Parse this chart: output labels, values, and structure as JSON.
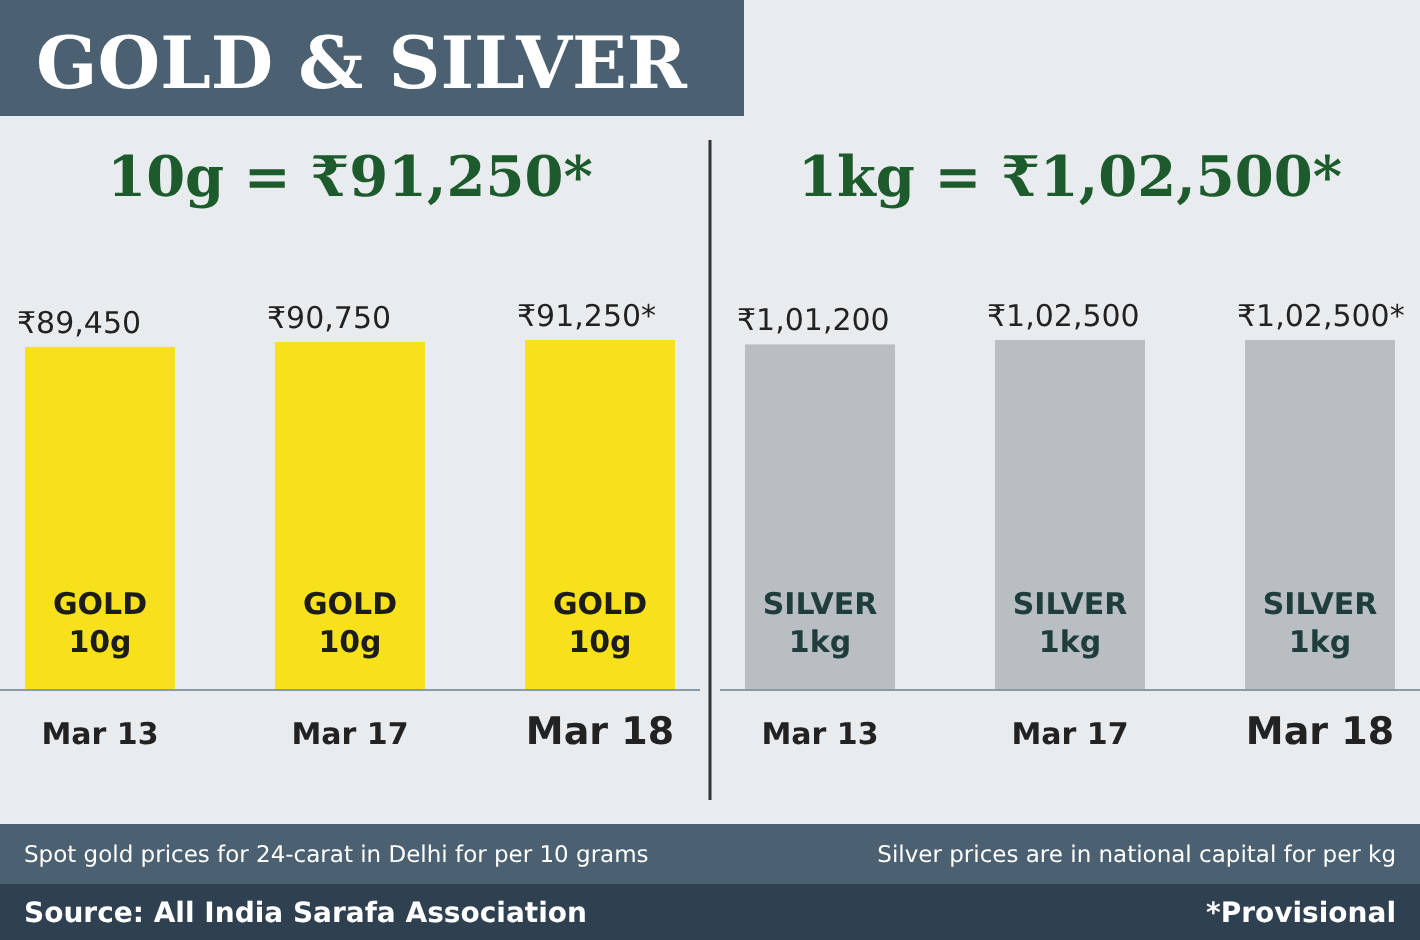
{
  "chart_data": [
    {
      "type": "bar",
      "title": "GOLD & SILVER",
      "subtitle": "10g = ₹91,250*",
      "categories": [
        "Mar 13",
        "Mar 17",
        "Mar 18"
      ],
      "values": [
        89450,
        90750,
        91250
      ],
      "color": "#f7e11a",
      "value_labels": [
        "₹89,450",
        "₹90,750",
        "₹91,250*"
      ],
      "annotations": [
        "GOLD 10g",
        "GOLD 10g",
        "GOLD 10g",
        "Spot gold prices for 24-carat in Delhi for per 10 grams",
        "Source: All India Sarafa Association"
      ]
    },
    {
      "type": "bar",
      "subtitle": "1kg = ₹1,02,500*",
      "categories": [
        "Mar 13",
        "Mar 17",
        "Mar 18"
      ],
      "values": [
        101200,
        102500,
        102500
      ],
      "color": "#b9bec3",
      "value_labels": [
        "₹1,01,200",
        "₹1,02,500",
        "₹1,02,500*"
      ],
      "annotations": [
        "SILVER 1kg",
        "SILVER 1kg",
        "SILVER 1kg",
        "Silver prices are in national capital for per kg",
        "*Provisional"
      ]
    }
  ]
}
